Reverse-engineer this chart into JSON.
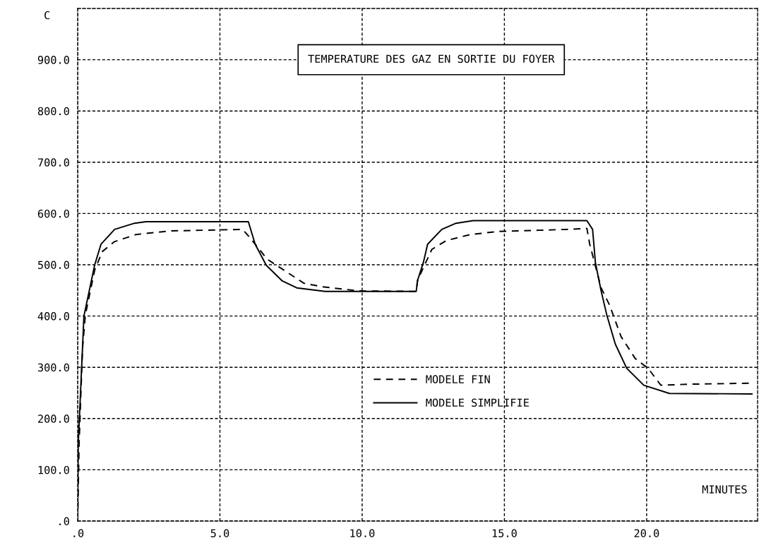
{
  "chart_data": {
    "type": "line",
    "title": "TEMPERATURE DES GAZ EN SORTIE DU FOYER",
    "xlabel": "MINUTES",
    "ylabel": "C",
    "series": [
      {
        "name": "MODELE FIN",
        "color": "#000000",
        "line_style": "dashed",
        "x": [
          0,
          0.05,
          0.17,
          0.27,
          0.6,
          0.87,
          1.29,
          2.05,
          3.25,
          5.8,
          6.07,
          6.66,
          7.95,
          8.6,
          9.9,
          11.9,
          11.95,
          12.45,
          12.95,
          13.8,
          14.8,
          17.2,
          17.9,
          18.0,
          18.4,
          18.7,
          19.1,
          19.6,
          20.05,
          20.5,
          21.5,
          23.7
        ],
        "values": [
          0,
          150,
          336,
          402,
          490,
          526,
          545,
          559,
          566,
          569,
          552,
          511,
          464,
          457,
          449,
          448,
          470,
          530,
          547,
          559,
          565,
          569,
          571,
          540,
          455,
          421,
          360,
          317,
          298,
          265,
          267,
          269
        ]
      },
      {
        "name": "MODELE SIMPLIFIE",
        "color": "#000000",
        "line_style": "solid",
        "x": [
          0,
          0.02,
          0.22,
          0.6,
          0.82,
          1.3,
          2.0,
          2.4,
          6.0,
          6.24,
          6.63,
          7.18,
          7.7,
          8.7,
          11.9,
          11.95,
          12.15,
          12.3,
          12.8,
          13.3,
          13.9,
          17.9,
          18.1,
          18.2,
          18.4,
          18.6,
          18.9,
          19.3,
          19.9,
          20.8,
          23.7
        ],
        "values": [
          0,
          150,
          400,
          500,
          540,
          569,
          581,
          584,
          584,
          540,
          499,
          469,
          455,
          448,
          448,
          470,
          504,
          540,
          569,
          581,
          586,
          586,
          569,
          504,
          449,
          402,
          345,
          298,
          265,
          249,
          248
        ]
      }
    ],
    "xlim": [
      0,
      23.9
    ],
    "ylim": [
      0,
      1000
    ],
    "xticks": [
      {
        "value": 0,
        "label": ".0"
      },
      {
        "value": 5,
        "label": "5.0"
      },
      {
        "value": 10,
        "label": "10.0"
      },
      {
        "value": 15,
        "label": "15.0"
      },
      {
        "value": 20,
        "label": "20.0"
      }
    ],
    "yticks": [
      {
        "value": 0,
        "label": ".0"
      },
      {
        "value": 100,
        "label": "100.0"
      },
      {
        "value": 200,
        "label": "200.0"
      },
      {
        "value": 300,
        "label": "300.0"
      },
      {
        "value": 400,
        "label": "400.0"
      },
      {
        "value": 500,
        "label": "500.0"
      },
      {
        "value": 600,
        "label": "600.0"
      },
      {
        "value": 700,
        "label": "700.0"
      },
      {
        "value": 800,
        "label": "800.0"
      },
      {
        "value": 900,
        "label": "900.0"
      }
    ],
    "grid": true,
    "legend": "bottom",
    "marker": "none"
  }
}
